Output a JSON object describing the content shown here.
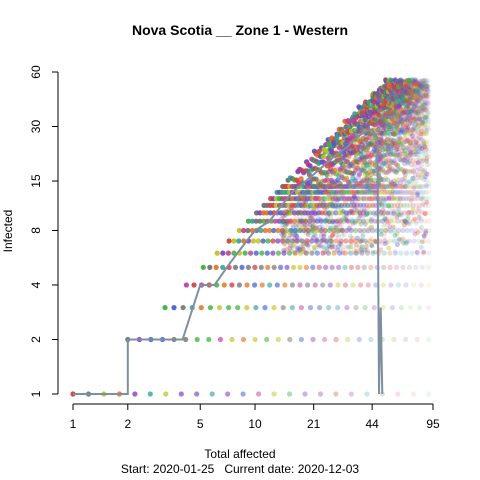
{
  "chart_data": {
    "type": "scatter",
    "title": "Nova Scotia __ Zone 1 - Western",
    "xlabel": "Total affected",
    "ylabel": "Infected",
    "x_scale": "log",
    "y_scale": "log",
    "xlim": [
      1,
      95
    ],
    "ylim": [
      1,
      60
    ],
    "x_ticks": [
      1,
      2,
      5,
      10,
      21,
      44,
      95
    ],
    "y_ticks": [
      1,
      2,
      4,
      8,
      15,
      30,
      60
    ],
    "footer": {
      "start_label": "Start:",
      "start_date": "2020-01-25",
      "current_label": "Current date:",
      "current_date": "2020-12-03"
    },
    "observed_series": {
      "color": "#7f8fa0",
      "points": [
        [
          1,
          1
        ],
        [
          2,
          1
        ],
        [
          2,
          2
        ],
        [
          3,
          2
        ],
        [
          4,
          2
        ],
        [
          5,
          4
        ],
        [
          6,
          4
        ],
        [
          7,
          5
        ],
        [
          8,
          6
        ],
        [
          9,
          7
        ],
        [
          10,
          8
        ],
        [
          12,
          9
        ],
        [
          14,
          11
        ],
        [
          16,
          13
        ],
        [
          19,
          15
        ],
        [
          22,
          17
        ],
        [
          25,
          19
        ],
        [
          28,
          21
        ],
        [
          32,
          23
        ],
        [
          36,
          26
        ],
        [
          40,
          28
        ],
        [
          44,
          29
        ],
        [
          47,
          26
        ],
        [
          48,
          1
        ],
        [
          49,
          3
        ],
        [
          50,
          1
        ]
      ]
    },
    "simulation_cloud": {
      "colors": [
        "#d04040",
        "#e07020",
        "#c0c020",
        "#40b040",
        "#30a0a0",
        "#4060d0",
        "#8040c0",
        "#c040a0",
        "#707070"
      ]
    }
  }
}
